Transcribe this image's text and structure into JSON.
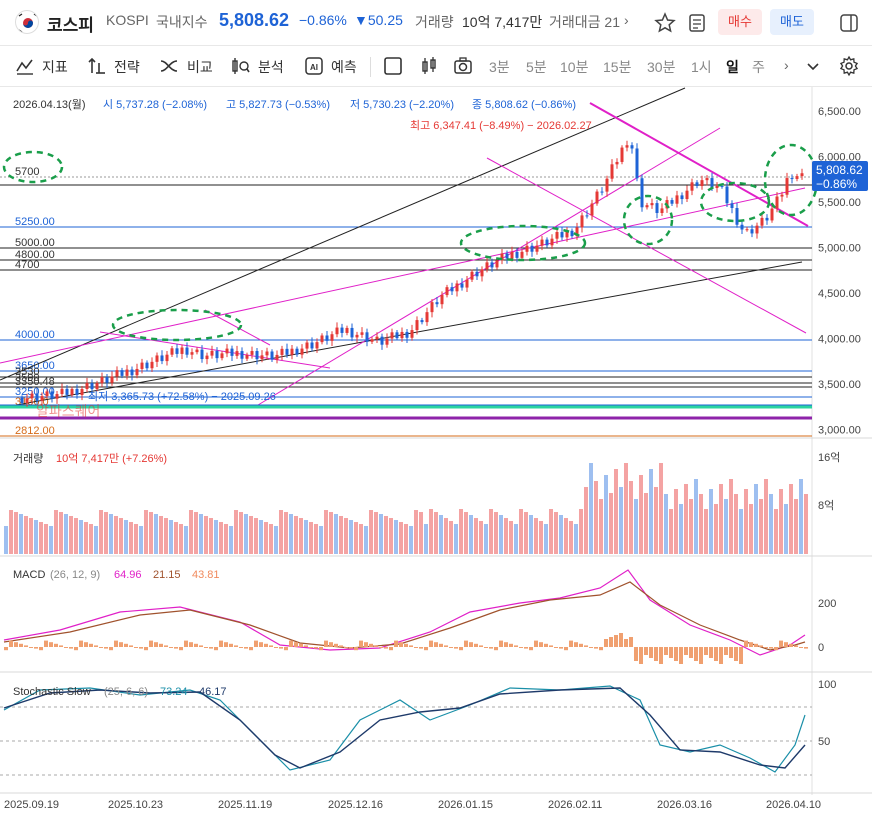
{
  "header": {
    "name": "코스피",
    "code": "KOSPI",
    "market": "국내지수",
    "price": "5,808.62",
    "change_pct": "−0.86%",
    "change_abs": "▼50.25",
    "volume_label": "거래량",
    "volume": "10억 7,417만",
    "value_label": "거래대금 21",
    "buy": "매수",
    "sell": "매도"
  },
  "toolbar": {
    "indicator": "지표",
    "strategy": "전략",
    "compare": "비교",
    "analysis": "분석",
    "forecast": "예측",
    "intervals": [
      "3분",
      "5분",
      "10분",
      "15분",
      "30분",
      "1시",
      "일",
      "주"
    ],
    "active_interval": "일"
  },
  "ohlc": {
    "date": "2026.04.13(월)",
    "open": "시 5,737.28 (−2.08%)",
    "high": "고 5,827.73 (−0.53%)",
    "low": "저 5,730.23 (−2.20%)",
    "close": "종 5,808.62 (−0.86%)",
    "max_label": "최고 6,347.41 (−8.49%) − 2026.02.27",
    "min_label": "최저 3,365.73 (+72.58%) − 2025.09.26",
    "watermark": "알파스퀘어",
    "last_price": "5,808.62",
    "last_change": "−0.86%"
  },
  "price_axis": [
    "6,500.00",
    "6,000.00",
    "5,500.00",
    "5,000.00",
    "4,500.00",
    "4,000.00",
    "3,500.00",
    "3,000.00"
  ],
  "levels": [
    "5700",
    "5250.00",
    "5000.00",
    "4800.00",
    "4700",
    "4000.00",
    "3650.00",
    "3530",
    "3500",
    "3350.48",
    "3250.00",
    "3136.0",
    "2812.00"
  ],
  "volume_panel": {
    "label": "거래량",
    "value": "10억 7,417만 (+7.26%)",
    "axis": [
      "16억",
      "8억"
    ]
  },
  "macd_panel": {
    "label": "MACD",
    "params": "(26, 12, 9)",
    "v1": "64.96",
    "v2": "21.15",
    "v3": "43.81",
    "axis": [
      "200",
      "0"
    ]
  },
  "stoch_panel": {
    "label": "Stochastic Slow",
    "params": "(25, 6, 6)",
    "v1": "73.24",
    "v2": "46.17",
    "axis": [
      "100",
      "50"
    ]
  },
  "dates": [
    "2025.09.19",
    "2025.10.23",
    "2025.11.19",
    "2025.12.16",
    "2026.01.15",
    "2026.02.11",
    "2026.03.16",
    "2026.04.10"
  ],
  "colors": {
    "up": "#e53935",
    "down": "#1e63d6",
    "magenta": "#e020c8",
    "green_dash": "#1a9e4a"
  }
}
